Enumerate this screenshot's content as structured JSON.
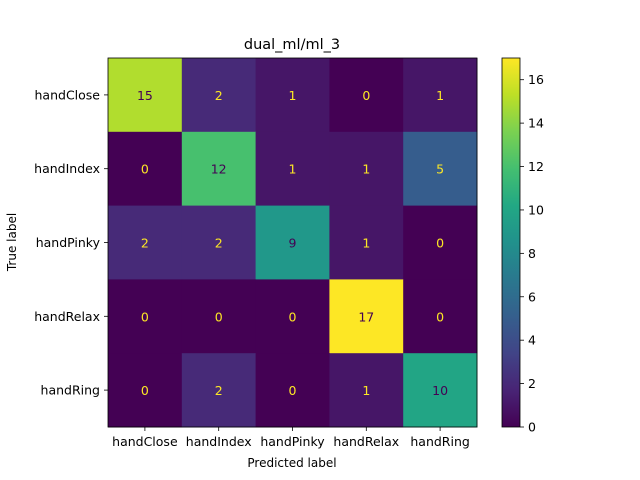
{
  "chart_data": {
    "type": "heatmap",
    "title": "dual_ml/ml_3",
    "xlabel": "Predicted label",
    "ylabel": "True label",
    "x_categories": [
      "handClose",
      "handIndex",
      "handPinky",
      "handRelax",
      "handRing"
    ],
    "y_categories": [
      "handClose",
      "handIndex",
      "handPinky",
      "handRelax",
      "handRing"
    ],
    "matrix": [
      [
        15,
        2,
        1,
        0,
        1
      ],
      [
        0,
        12,
        1,
        1,
        5
      ],
      [
        2,
        2,
        9,
        1,
        0
      ],
      [
        0,
        0,
        0,
        17,
        0
      ],
      [
        0,
        2,
        0,
        1,
        10
      ]
    ],
    "colormap": "viridis",
    "colorbar": {
      "range": [
        0,
        17
      ],
      "ticks": [
        0,
        2,
        4,
        6,
        8,
        10,
        12,
        14,
        16
      ]
    },
    "text_colors": {
      "light": "#fde725",
      "dark": "#440154"
    }
  }
}
